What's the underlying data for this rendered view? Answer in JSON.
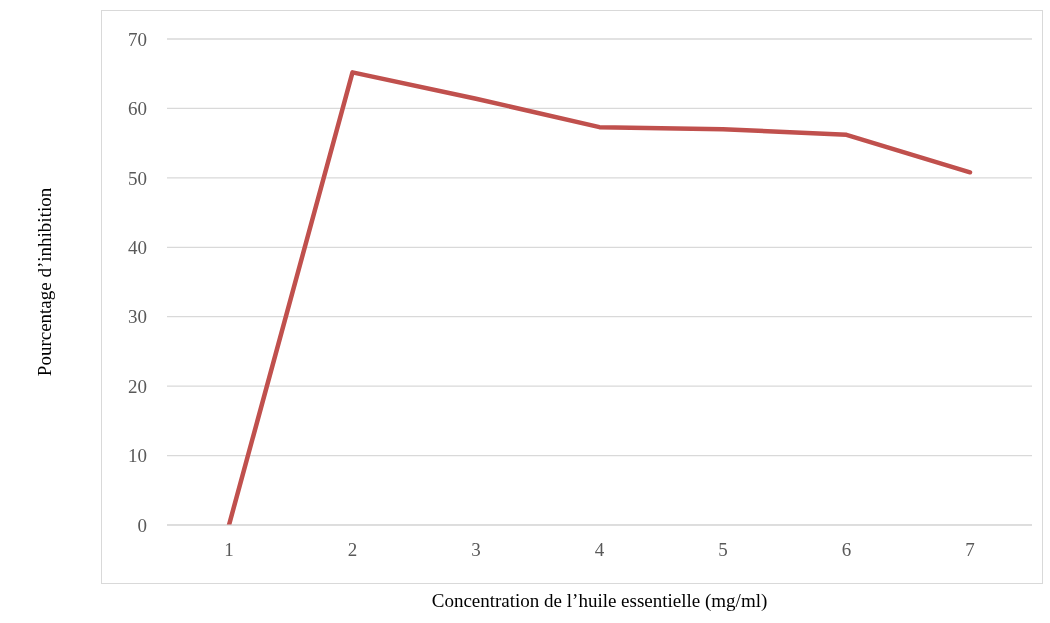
{
  "chart_data": {
    "type": "line",
    "xlabel": "Concentration de l’huile essentielle (mg/ml)",
    "ylabel": "Pourcentage d’inhibition",
    "categories": [
      "1",
      "2",
      "3",
      "4",
      "5",
      "6",
      "7"
    ],
    "series": [
      {
        "color": "#c0504d",
        "values": [
          0,
          65.2,
          61.4,
          57.3,
          57.0,
          56.2,
          50.8
        ]
      }
    ],
    "ylim": [
      0,
      70
    ],
    "yticks": [
      0,
      10,
      20,
      30,
      40,
      50,
      60,
      70
    ],
    "grid": "y",
    "legend": false,
    "marker": "none",
    "line_style": "solid"
  }
}
